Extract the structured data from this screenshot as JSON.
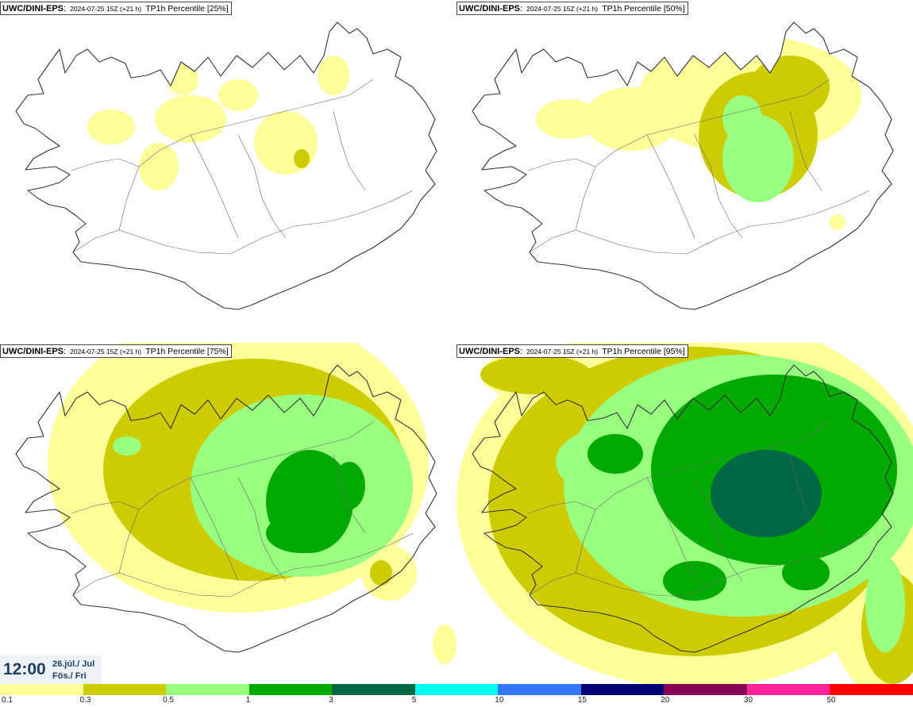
{
  "panels": [
    {
      "model": "UWC/DINI-EPS",
      "meta": "2024-07-25 15Z (+21 h)",
      "percentile": "TP1h Percentile [25%]",
      "level": 0
    },
    {
      "model": "UWC/DINI-EPS",
      "meta": "2024-07-25 15Z (+21 h)",
      "percentile": "TP1h Percentile [50%]",
      "level": 1
    },
    {
      "model": "UWC/DINI-EPS",
      "meta": "2024-07-25 15Z (+21 h)",
      "percentile": "TP1h Percentile [75%]",
      "level": 2
    },
    {
      "model": "UWC/DINI-EPS",
      "meta": "2024-07-25 15Z (+21 h)",
      "percentile": "TP1h Percentile [95%]",
      "level": 3
    }
  ],
  "valid_time": {
    "time": "12:00",
    "date_line1": "26.júl./ Jul",
    "date_line2": "Fös./ Fri"
  },
  "legend": {
    "colors": [
      "#ffff99",
      "#cccc00",
      "#99ff80",
      "#00aa00",
      "#006644",
      "#00ffee",
      "#3377ff",
      "#000077",
      "#880055",
      "#ff2299",
      "#ff0000"
    ],
    "labels": [
      "0.1",
      "0.3",
      "0.5",
      "1",
      "3",
      "5",
      "10",
      "15",
      "20",
      "30",
      "50"
    ]
  }
}
